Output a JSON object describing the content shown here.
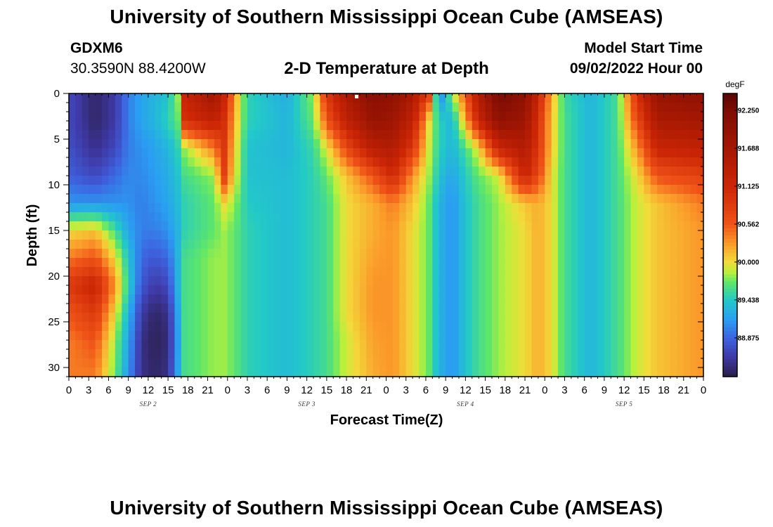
{
  "header": {
    "title": "University of Southern Mississippi Ocean Cube (AMSEAS)",
    "station_id": "GDXM6",
    "coords": "30.3590N  88.4200W",
    "plot_title": "2-D Temperature at Depth",
    "start_label": "Model Start Time",
    "start_value": "09/02/2022 Hour 00"
  },
  "footer": {
    "title": "University of Southern Mississippi Ocean Cube (AMSEAS)"
  },
  "chart_data": {
    "type": "heatmap",
    "title": "2-D Temperature at Depth",
    "xlabel": "Forecast Time(Z)",
    "ylabel": "Depth (ft)",
    "x_tick_labels": [
      "0",
      "3",
      "6",
      "9",
      "12",
      "15",
      "18",
      "21",
      "0",
      "3",
      "6",
      "9",
      "12",
      "15",
      "18",
      "21",
      "0",
      "3",
      "6",
      "9",
      "12",
      "15",
      "18",
      "21",
      "0",
      "3",
      "6",
      "9",
      "12",
      "15",
      "18",
      "21",
      "0"
    ],
    "x_range_hours": [
      0,
      96
    ],
    "date_labels": [
      "SEP 2",
      "SEP 3",
      "SEP 4",
      "SEP 5"
    ],
    "y_ticks": [
      0,
      5,
      10,
      15,
      20,
      25,
      30
    ],
    "y_range_ft": [
      0,
      31
    ],
    "colorbar": {
      "unit": "degF",
      "labels": [
        "92.250",
        "91.688",
        "91.125",
        "90.562",
        "90.000",
        "89.438",
        "88.875"
      ],
      "vmin": 88.3,
      "vmax": 92.5,
      "stops": [
        {
          "v": 88.3,
          "c": "#2a1e46"
        },
        {
          "v": 88.6,
          "c": "#3f3aa8"
        },
        {
          "v": 88.875,
          "c": "#3e63e0"
        },
        {
          "v": 89.15,
          "c": "#2a9ef2"
        },
        {
          "v": 89.438,
          "c": "#22c9c8"
        },
        {
          "v": 89.7,
          "c": "#5ee66a"
        },
        {
          "v": 89.85,
          "c": "#b8f03c"
        },
        {
          "v": 90.0,
          "c": "#f2dc3a"
        },
        {
          "v": 90.28,
          "c": "#fb9a2a"
        },
        {
          "v": 90.562,
          "c": "#f05418"
        },
        {
          "v": 91.125,
          "c": "#cc2606"
        },
        {
          "v": 91.688,
          "c": "#a51803"
        },
        {
          "v": 92.25,
          "c": "#7e0c04"
        },
        {
          "v": 92.5,
          "c": "#5a0504"
        }
      ]
    },
    "temperature_profiles_degF": {
      "depths_ft": [
        0,
        3,
        6,
        9,
        12,
        15,
        18,
        21,
        24,
        27,
        31
      ],
      "profiles": [
        {
          "hour": 0,
          "values": [
            88.7,
            88.7,
            88.75,
            88.85,
            89.1,
            90.0,
            90.4,
            90.9,
            90.6,
            90.4,
            90.4
          ]
        },
        {
          "hour": 4,
          "values": [
            88.4,
            88.4,
            88.5,
            88.7,
            89.1,
            90.1,
            90.6,
            91.2,
            90.9,
            90.6,
            90.4
          ]
        },
        {
          "hour": 7,
          "values": [
            88.6,
            88.6,
            88.7,
            88.9,
            89.1,
            89.6,
            90.0,
            90.3,
            90.0,
            89.8,
            89.7
          ]
        },
        {
          "hour": 9,
          "values": [
            89.0,
            89.0,
            89.0,
            89.05,
            89.1,
            89.2,
            89.4,
            89.5,
            89.3,
            89.2,
            89.1
          ]
        },
        {
          "hour": 11,
          "values": [
            89.2,
            89.2,
            89.1,
            89.05,
            89.0,
            89.0,
            88.9,
            88.8,
            88.6,
            88.5,
            88.5
          ]
        },
        {
          "hour": 13,
          "values": [
            89.3,
            89.3,
            89.2,
            89.15,
            89.1,
            89.0,
            88.8,
            88.6,
            88.4,
            88.35,
            88.4
          ]
        },
        {
          "hour": 15,
          "values": [
            89.4,
            89.5,
            89.3,
            89.25,
            89.2,
            89.1,
            88.9,
            88.7,
            88.5,
            88.45,
            88.5
          ]
        },
        {
          "hour": 16.5,
          "values": [
            89.8,
            89.7,
            89.5,
            89.4,
            89.35,
            89.3,
            89.3,
            89.3,
            89.2,
            89.15,
            89.2
          ]
        },
        {
          "hour": 17.5,
          "values": [
            91.2,
            91.0,
            89.8,
            89.6,
            89.5,
            89.5,
            89.6,
            89.6,
            89.6,
            89.6,
            89.6
          ]
        },
        {
          "hour": 22,
          "values": [
            91.8,
            91.3,
            90.4,
            89.8,
            89.7,
            89.7,
            89.8,
            89.8,
            89.8,
            89.8,
            89.8
          ]
        },
        {
          "hour": 23.5,
          "values": [
            91.2,
            91.0,
            90.9,
            90.8,
            90.0,
            89.8,
            89.8,
            89.8,
            89.8,
            89.8,
            89.8
          ]
        },
        {
          "hour": 25,
          "values": [
            90.3,
            90.2,
            90.1,
            90.0,
            89.8,
            89.7,
            89.7,
            89.7,
            89.7,
            89.7,
            89.7
          ]
        },
        {
          "hour": 27,
          "values": [
            89.5,
            89.5,
            89.4,
            89.4,
            89.45,
            89.5,
            89.5,
            89.5,
            89.5,
            89.5,
            89.5
          ]
        },
        {
          "hour": 33,
          "values": [
            89.25,
            89.3,
            89.3,
            89.35,
            89.35,
            89.35,
            89.35,
            89.35,
            89.35,
            89.35,
            89.35
          ]
        },
        {
          "hour": 37,
          "values": [
            89.8,
            89.7,
            89.55,
            89.5,
            89.5,
            89.5,
            89.5,
            89.5,
            89.5,
            89.5,
            89.5
          ]
        },
        {
          "hour": 39,
          "values": [
            90.9,
            90.6,
            89.95,
            89.7,
            89.6,
            89.6,
            89.6,
            89.6,
            89.6,
            89.6,
            89.6
          ]
        },
        {
          "hour": 42,
          "values": [
            91.6,
            91.3,
            90.7,
            90.1,
            90.0,
            90.0,
            90.0,
            90.0,
            90.0,
            89.9,
            89.9
          ]
        },
        {
          "hour": 46,
          "values": [
            92.1,
            91.9,
            91.4,
            90.6,
            90.2,
            90.2,
            90.25,
            90.3,
            90.3,
            90.25,
            90.2
          ]
        },
        {
          "hour": 49,
          "values": [
            92.0,
            91.8,
            91.5,
            91.1,
            90.4,
            90.3,
            90.3,
            90.3,
            90.3,
            90.3,
            90.3
          ]
        },
        {
          "hour": 52,
          "values": [
            91.6,
            91.3,
            90.9,
            90.3,
            90.1,
            90.0,
            90.0,
            90.0,
            90.0,
            90.0,
            90.0
          ]
        },
        {
          "hour": 54.5,
          "values": [
            90.8,
            90.0,
            89.9,
            89.8,
            89.7,
            89.7,
            89.7,
            89.7,
            89.7,
            89.7,
            89.7
          ]
        },
        {
          "hour": 56,
          "values": [
            88.9,
            89.5,
            89.5,
            89.4,
            89.3,
            89.3,
            89.3,
            89.3,
            89.3,
            89.3,
            89.3
          ]
        },
        {
          "hour": 58,
          "values": [
            89.8,
            89.3,
            89.3,
            89.2,
            89.1,
            89.1,
            89.1,
            89.1,
            89.1,
            89.1,
            89.1
          ]
        },
        {
          "hour": 60,
          "values": [
            90.6,
            90.2,
            89.6,
            89.45,
            89.4,
            89.4,
            89.4,
            89.4,
            89.4,
            89.4,
            89.4
          ]
        },
        {
          "hour": 62,
          "values": [
            91.5,
            91.2,
            90.0,
            89.7,
            89.6,
            89.6,
            89.6,
            89.6,
            89.6,
            89.6,
            89.6
          ]
        },
        {
          "hour": 65,
          "values": [
            92.3,
            92.0,
            91.2,
            89.9,
            89.8,
            89.8,
            89.8,
            89.8,
            89.8,
            89.8,
            89.8
          ]
        },
        {
          "hour": 69,
          "values": [
            92.0,
            91.8,
            91.5,
            91.2,
            90.1,
            90.0,
            90.0,
            90.0,
            90.0,
            90.0,
            90.0
          ]
        },
        {
          "hour": 71,
          "values": [
            91.2,
            91.0,
            90.9,
            90.7,
            90.2,
            90.2,
            90.2,
            90.2,
            90.2,
            90.2,
            90.2
          ]
        },
        {
          "hour": 73,
          "values": [
            90.2,
            90.1,
            90.1,
            90.0,
            90.0,
            90.0,
            90.0,
            90.0,
            90.0,
            90.0,
            90.0
          ]
        },
        {
          "hour": 75,
          "values": [
            89.55,
            89.6,
            89.6,
            89.6,
            89.6,
            89.6,
            89.6,
            89.6,
            89.6,
            89.6,
            89.6
          ]
        },
        {
          "hour": 79,
          "values": [
            89.3,
            89.3,
            89.3,
            89.3,
            89.3,
            89.3,
            89.3,
            89.3,
            89.3,
            89.3,
            89.3
          ]
        },
        {
          "hour": 83,
          "values": [
            89.6,
            89.6,
            89.6,
            89.6,
            89.6,
            89.6,
            89.6,
            89.6,
            89.6,
            89.6,
            89.6
          ]
        },
        {
          "hour": 86,
          "values": [
            91.0,
            90.7,
            90.3,
            90.0,
            89.9,
            89.9,
            89.9,
            89.9,
            89.9,
            89.9,
            89.9
          ]
        },
        {
          "hour": 89,
          "values": [
            91.9,
            91.6,
            91.2,
            90.6,
            90.1,
            90.1,
            90.1,
            90.1,
            90.1,
            90.1,
            90.1
          ]
        },
        {
          "hour": 96,
          "values": [
            92.0,
            91.7,
            91.3,
            90.8,
            90.4,
            90.3,
            90.3,
            90.3,
            90.3,
            90.3,
            90.3
          ]
        }
      ]
    }
  }
}
